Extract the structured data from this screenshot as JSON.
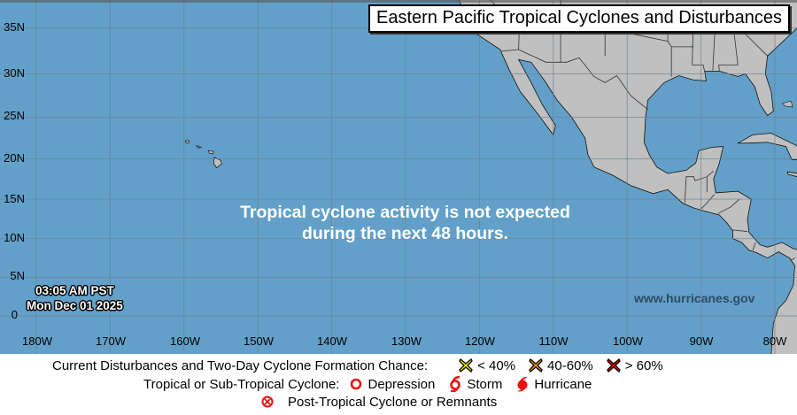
{
  "title": "Eastern Pacific Tropical Cyclones and Disturbances",
  "message": {
    "line1": "Tropical cyclone activity is not expected",
    "line2": "during the next 48 hours."
  },
  "timestamp": {
    "time": "03:05 AM PST",
    "date": "Mon Dec 01 2025"
  },
  "website": "www.hurricanes.gov",
  "latitude_labels": [
    "35N",
    "30N",
    "25N",
    "20N",
    "15N",
    "10N",
    "5N",
    "0"
  ],
  "longitude_labels": [
    "180W",
    "170W",
    "160W",
    "150W",
    "140W",
    "130W",
    "120W",
    "110W",
    "100W",
    "90W",
    "80W"
  ],
  "legend": {
    "disturbances_label": "Current Disturbances and Two-Day Cyclone Formation Chance:",
    "chance_low": "< 40%",
    "chance_mid": "40-60%",
    "chance_high": "> 60%",
    "cyclone_label": "Tropical or Sub-Tropical Cyclone:",
    "depression": "Depression",
    "storm": "Storm",
    "hurricane": "Hurricane",
    "post_tropical": "Post-Tropical Cyclone or Remnants"
  },
  "colors": {
    "ocean": "#62a0c9",
    "land": "#c0c0c0",
    "low_chance": "#ffff00",
    "mid_chance": "#ff9900",
    "high_chance": "#ee0000",
    "cyclone": "#ee1111"
  }
}
